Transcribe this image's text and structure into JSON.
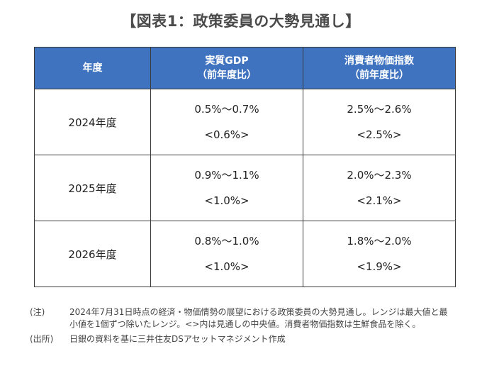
{
  "title": "【図表1：政策委員の大勢見通し】",
  "table": {
    "headers": {
      "year": "年度",
      "gdp_line1": "実質GDP",
      "gdp_line2": "（前年度比）",
      "cpi_line1": "消費者物価指数",
      "cpi_line2": "（前年度比）"
    },
    "rows": [
      {
        "year": "2024年度",
        "gdp_range": "0.5%～0.7%",
        "gdp_median": "<0.6%>",
        "cpi_range": "2.5%～2.6%",
        "cpi_median": "<2.5%>"
      },
      {
        "year": "2025年度",
        "gdp_range": "0.9%～1.1%",
        "gdp_median": "<1.0%>",
        "cpi_range": "2.0%～2.3%",
        "cpi_median": "<2.1%>"
      },
      {
        "year": "2026年度",
        "gdp_range": "0.8%～1.0%",
        "gdp_median": "<1.0%>",
        "cpi_range": "1.8%～2.0%",
        "cpi_median": "<1.9%>"
      }
    ]
  },
  "notes": {
    "note_label": "(注)",
    "note_text": "2024年7月31日時点の経済・物価情勢の展望における政策委員の大勢見通し。レンジは最大値と最小値を1個ずつ除いたレンジ。<>内は見通しの中央値。消費者物価指数は生鮮食品を除く。",
    "source_label": "(出所)",
    "source_text": "日銀の資料を基に三井住友DSアセットマネジメント作成"
  }
}
